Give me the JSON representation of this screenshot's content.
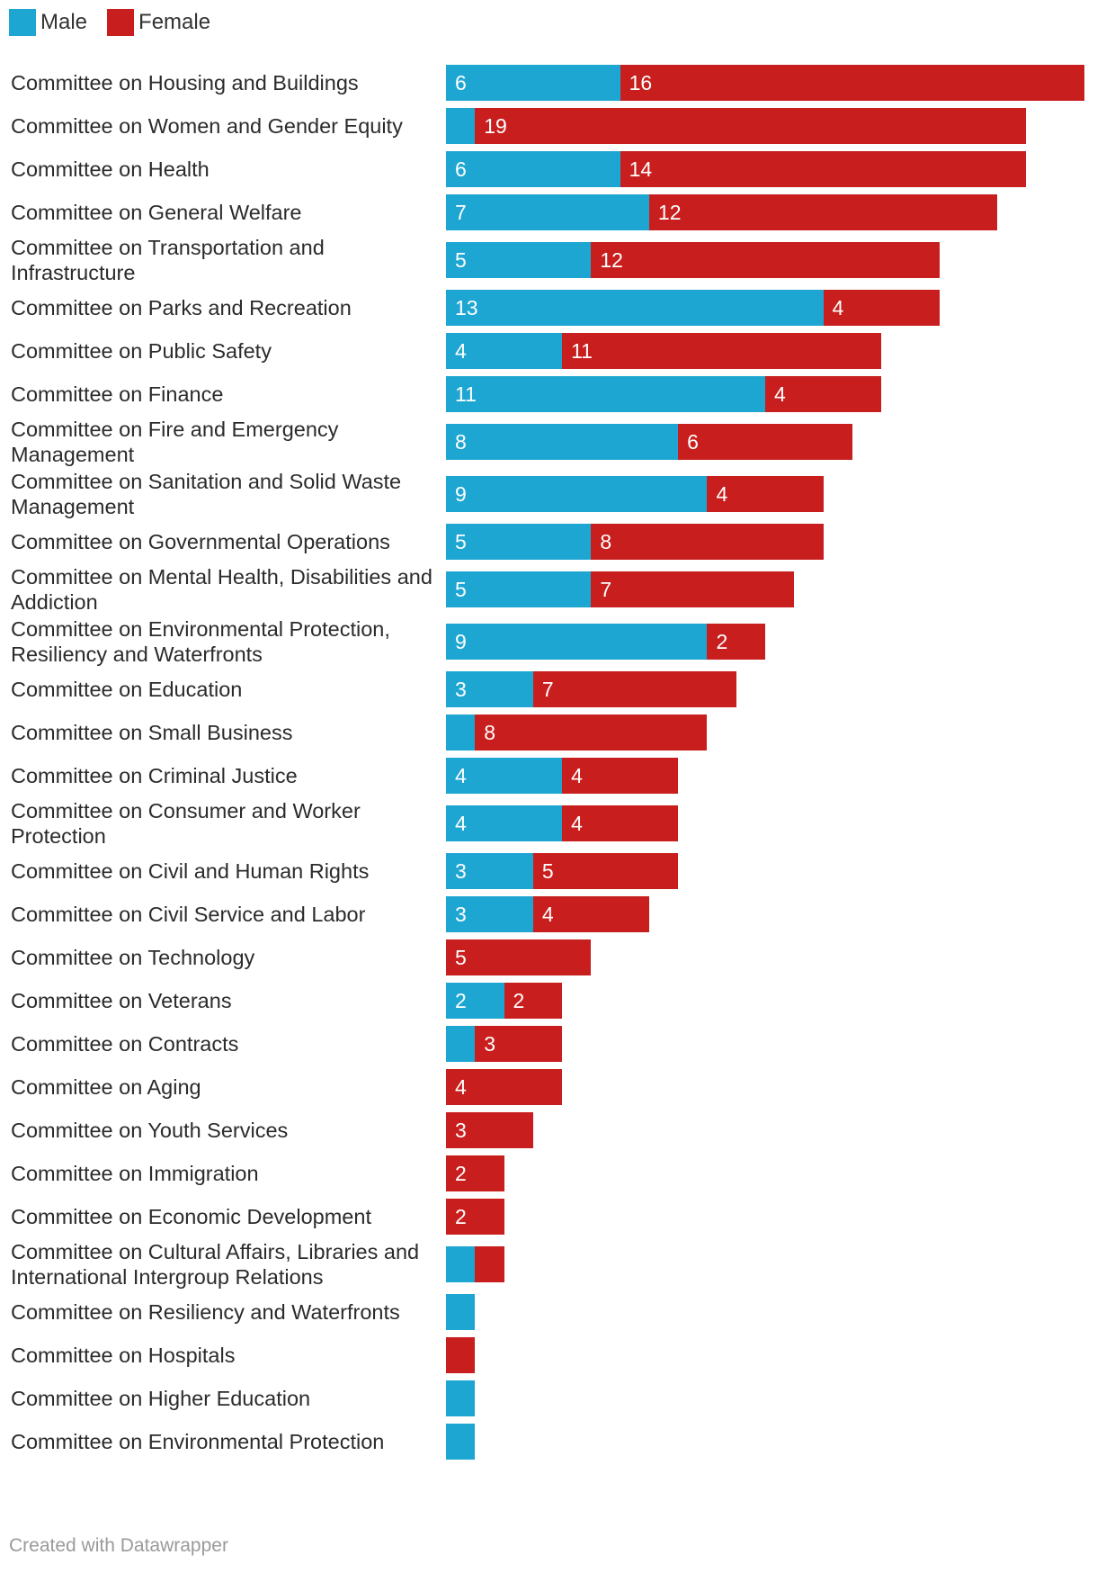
{
  "chart_data": {
    "type": "bar",
    "orientation": "horizontal",
    "stacked": true,
    "title": "",
    "legend": [
      {
        "name": "Male",
        "color": "#1ea6d2"
      },
      {
        "name": "Female",
        "color": "#c81e1e"
      }
    ],
    "categories": [
      "Committee on Housing and Buildings",
      "Committee on Women and Gender Equity",
      "Committee on Health",
      "Committee on General Welfare",
      "Committee on Transportation and Infrastructure",
      "Committee on Parks and Recreation",
      "Committee on Public Safety",
      "Committee on Finance",
      "Committee on Fire and Emergency Management",
      "Committee on Sanitation and Solid Waste Management",
      "Committee on Governmental Operations",
      "Committee on Mental Health, Disabilities and Addiction",
      "Committee on Environmental Protection, Resiliency and Waterfronts",
      "Committee on Education",
      "Committee on Small Business",
      "Committee on Criminal Justice",
      "Committee on Consumer and Worker Protection",
      "Committee on Civil and Human Rights",
      "Committee on Civil Service and Labor",
      "Committee on Technology",
      "Committee on Veterans",
      "Committee on Contracts",
      "Committee on Aging",
      "Committee on Youth Services",
      "Committee on Immigration",
      "Committee on Economic Development",
      "Committee on Cultural Affairs, Libraries and International Intergroup Relations",
      "Committee on Resiliency and Waterfronts",
      "Committee on Hospitals",
      "Committee on Higher Education",
      "Committee on Environmental Protection"
    ],
    "series": [
      {
        "name": "Male",
        "values": [
          6,
          1,
          6,
          7,
          5,
          13,
          4,
          11,
          8,
          9,
          5,
          5,
          9,
          3,
          1,
          4,
          4,
          3,
          3,
          0,
          2,
          1,
          0,
          0,
          0,
          0,
          1,
          1,
          0,
          1,
          1
        ]
      },
      {
        "name": "Female",
        "values": [
          16,
          19,
          14,
          12,
          12,
          4,
          11,
          4,
          6,
          4,
          8,
          7,
          2,
          7,
          8,
          4,
          4,
          5,
          4,
          5,
          2,
          3,
          4,
          3,
          2,
          2,
          1,
          0,
          1,
          0,
          0
        ]
      }
    ],
    "xlim": [
      0,
      22
    ]
  },
  "footer": "Created with Datawrapper"
}
